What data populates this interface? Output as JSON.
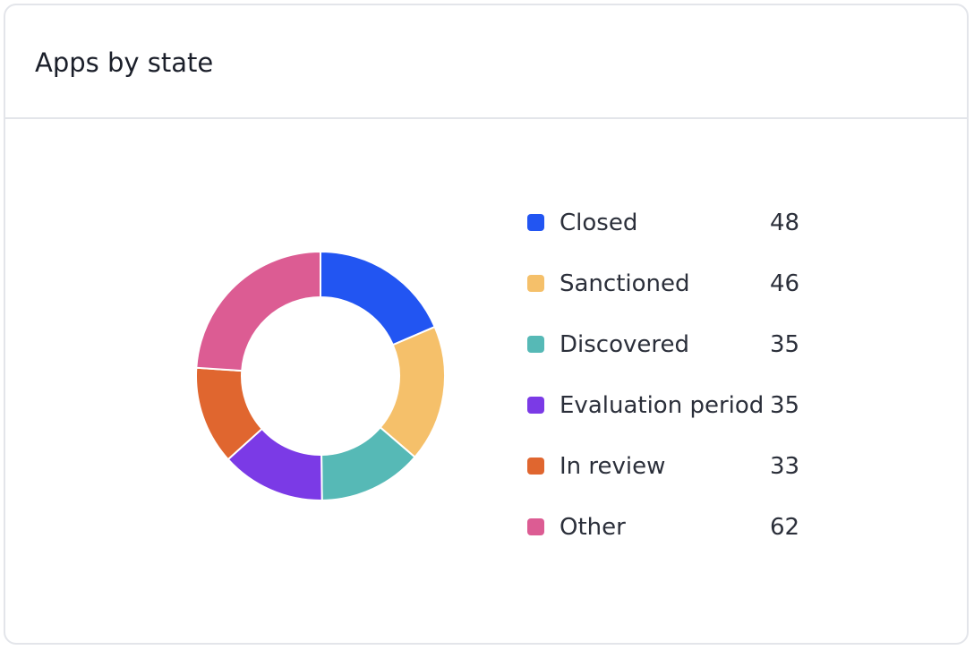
{
  "card": {
    "title": "Apps by state"
  },
  "chart_data": {
    "type": "pie",
    "title": "Apps by state",
    "donut": true,
    "legend_placement": "right",
    "categories": [
      "Closed",
      "Sanctioned",
      "Discovered",
      "Evaluation period",
      "In review",
      "Other"
    ],
    "values": [
      48,
      46,
      35,
      35,
      33,
      62
    ],
    "colors": [
      "#2255f2",
      "#f5c06a",
      "#56b9b6",
      "#7b3ae6",
      "#e0662f",
      "#dc5c93"
    ]
  }
}
